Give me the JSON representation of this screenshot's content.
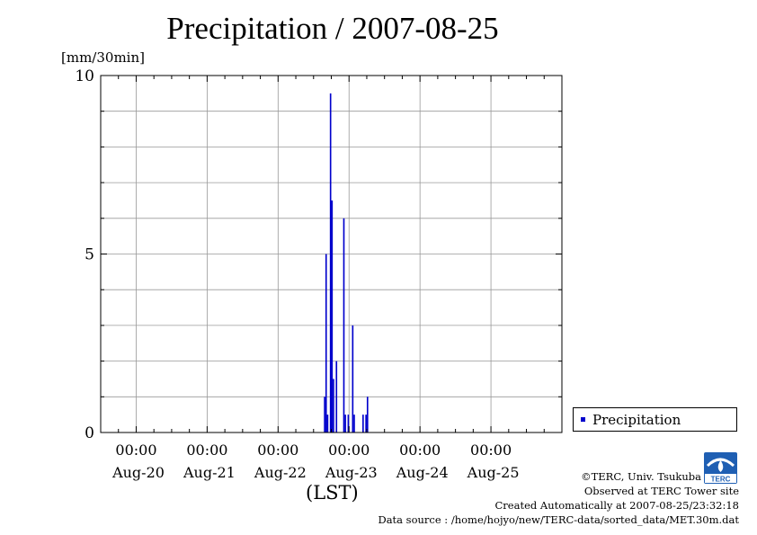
{
  "header": {
    "title": "Precipitation / 2007-08-25",
    "unit_label": "[mm/30min]"
  },
  "legend": {
    "label": "Precipitation",
    "color": "#0000cc"
  },
  "footer": {
    "time_zone_label": "(LST)",
    "copyright": "©TERC, Univ. Tsukuba",
    "observed_at": "Observed at TERC Tower site",
    "created": "Created Automatically at 2007-08-25/23:32:18",
    "data_source": "Data source : /home/hojyo/new/TERC-data/sorted_data/MET.30m.dat",
    "logo_text": "TERC"
  },
  "chart_data": {
    "type": "bar",
    "title": "Precipitation / 2007-08-25",
    "ylabel": "[mm/30min]",
    "xlabel": "(LST)",
    "ylim": [
      0,
      10
    ],
    "y_ticks": [
      0,
      5,
      10
    ],
    "x_range_days": [
      "Aug-19 12:00",
      "Aug-25 24:00"
    ],
    "x_ticks": [
      {
        "time": "00:00",
        "date": "Aug-20"
      },
      {
        "time": "00:00",
        "date": "Aug-21"
      },
      {
        "time": "00:00",
        "date": "Aug-22"
      },
      {
        "time": "00:00",
        "date": "Aug-23"
      },
      {
        "time": "00:00",
        "date": "Aug-24"
      },
      {
        "time": "00:00",
        "date": "Aug-25"
      }
    ],
    "grid": true,
    "legend_position": "right",
    "series": [
      {
        "name": "Precipitation",
        "color": "#0000cc",
        "points": [
          {
            "t": "Aug-22 16:00",
            "v": 1.0
          },
          {
            "t": "Aug-22 16:30",
            "v": 5.0
          },
          {
            "t": "Aug-22 17:00",
            "v": 0.5
          },
          {
            "t": "Aug-22 18:00",
            "v": 9.5
          },
          {
            "t": "Aug-22 18:30",
            "v": 6.5
          },
          {
            "t": "Aug-22 19:00",
            "v": 1.5
          },
          {
            "t": "Aug-22 20:00",
            "v": 2.0
          },
          {
            "t": "Aug-22 22:30",
            "v": 6.0
          },
          {
            "t": "Aug-22 23:00",
            "v": 0.5
          },
          {
            "t": "Aug-23 00:00",
            "v": 0.5
          },
          {
            "t": "Aug-23 01:30",
            "v": 3.0
          },
          {
            "t": "Aug-23 02:00",
            "v": 0.5
          },
          {
            "t": "Aug-23 05:00",
            "v": 0.5
          },
          {
            "t": "Aug-23 06:00",
            "v": 0.5
          },
          {
            "t": "Aug-23 06:30",
            "v": 1.0
          }
        ]
      }
    ]
  }
}
